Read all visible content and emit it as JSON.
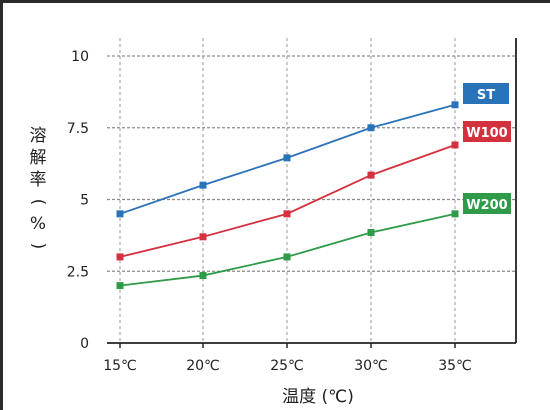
{
  "chart_data": {
    "type": "line",
    "x": [
      "15℃",
      "20℃",
      "25℃",
      "30℃",
      "35℃"
    ],
    "xlabel": "温度 (℃)",
    "ylabel": "溶解率(%)",
    "ylabel_chars": [
      "溶",
      "解",
      "率",
      "(",
      "%",
      ")"
    ],
    "ylim": [
      0,
      10
    ],
    "yticks": [
      "0",
      "2.5",
      "5",
      "7.5",
      "10"
    ],
    "ytick_values": [
      0,
      2.5,
      5,
      7.5,
      10
    ],
    "grid": "horizontal dashed",
    "series": [
      {
        "name": "ST",
        "color": "#2a73b8",
        "values": [
          4.5,
          5.5,
          6.45,
          7.5,
          8.3
        ]
      },
      {
        "name": "W100",
        "color": "#d4313f",
        "values": [
          3.0,
          3.7,
          4.5,
          5.85,
          6.9
        ]
      },
      {
        "name": "W200",
        "color": "#2f9a48",
        "values": [
          2.0,
          2.35,
          3.0,
          3.85,
          4.5
        ]
      }
    ]
  }
}
